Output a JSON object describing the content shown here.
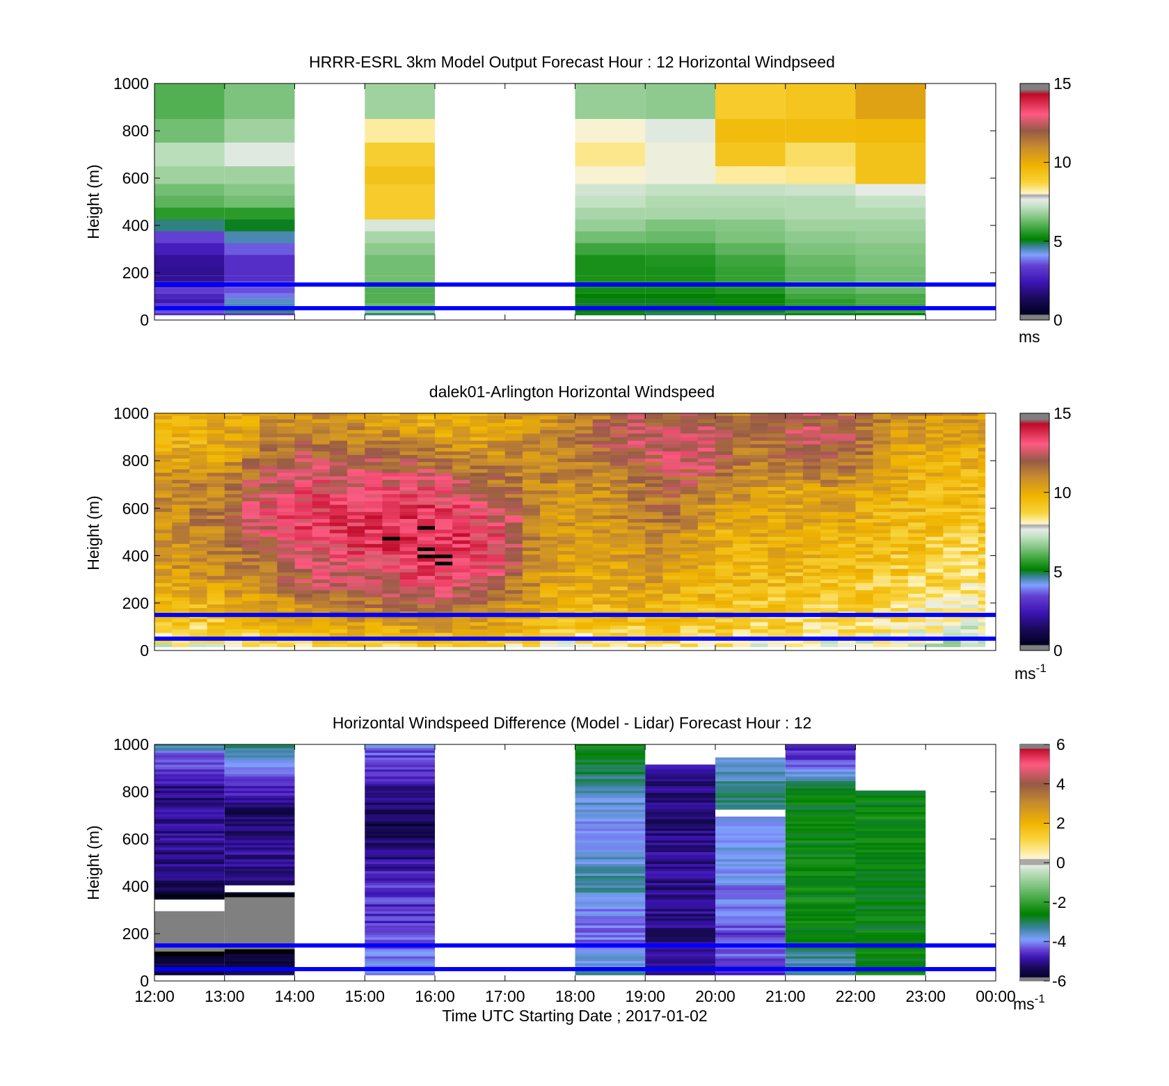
{
  "chart_data": [
    {
      "type": "heatmap",
      "title": "HRRR-ESRL 3km Model Output   Forecast Hour : 12 Horizontal Windpseed",
      "ylabel": "Height (m)",
      "xlabel": "",
      "yticks": [
        "0",
        "200",
        "400",
        "600",
        "800",
        "1000"
      ],
      "ylim": [
        0,
        1000
      ],
      "xlim_hours": [
        12,
        24
      ],
      "colorbar": {
        "ticks": [
          "0",
          "5",
          "10",
          "15"
        ],
        "min": 0,
        "max": 15,
        "unit": "ms",
        "unit_sup": ""
      },
      "reference_lines_m": [
        50,
        150
      ],
      "reference_line_color": "#0000ff",
      "heights_m": [
        20,
        40,
        60,
        80,
        100,
        125,
        150,
        175,
        200,
        250,
        300,
        350,
        400,
        450,
        500,
        550,
        600,
        700,
        800,
        900,
        1000
      ],
      "columns": [
        {
          "start": 12,
          "end": 13,
          "values": [
            3.0,
            3.5,
            3.2,
            2.5,
            2.8,
            3.3,
            2.3,
            2.0,
            2.0,
            2.1,
            2.6,
            3.4,
            4.7,
            5.6,
            6.1,
            6.3,
            6.8,
            7.1,
            6.3,
            6.0,
            6.0
          ]
        },
        {
          "start": 13,
          "end": 14,
          "values": [
            3.2,
            4.7,
            4.5,
            4.4,
            3.8,
            3.5,
            3.5,
            3.0,
            3.0,
            3.0,
            3.6,
            4.5,
            5.0,
            5.6,
            6.3,
            6.5,
            6.8,
            7.6,
            6.8,
            6.4,
            6.4
          ]
        },
        {
          "start": 15,
          "end": 16,
          "values": [
            4.7,
            6.5,
            6.2,
            6.0,
            6.0,
            6.0,
            6.0,
            6.3,
            6.3,
            6.3,
            6.6,
            6.9,
            7.5,
            9.0,
            9.0,
            9.0,
            9.3,
            8.9,
            8.2,
            6.8,
            6.8
          ]
        },
        {
          "start": 18,
          "end": 19,
          "values": [
            5.0,
            5.1,
            5.0,
            5.0,
            5.1,
            5.3,
            5.3,
            5.4,
            5.4,
            5.4,
            5.8,
            6.3,
            6.7,
            6.9,
            7.2,
            7.4,
            7.9,
            8.3,
            7.9,
            6.7,
            6.7
          ]
        },
        {
          "start": 19,
          "end": 20,
          "values": [
            4.8,
            5.0,
            5.0,
            5.0,
            5.1,
            5.3,
            5.3,
            5.4,
            5.4,
            5.5,
            5.8,
            6.2,
            6.4,
            6.9,
            7.0,
            7.2,
            7.8,
            7.8,
            7.6,
            6.6,
            6.6
          ]
        },
        {
          "start": 20,
          "end": 21,
          "values": [
            4.8,
            5.2,
            5.2,
            5.2,
            5.2,
            5.5,
            5.5,
            5.7,
            5.7,
            5.8,
            6.1,
            6.4,
            6.5,
            6.9,
            7.0,
            7.2,
            8.2,
            9.2,
            9.5,
            9.0,
            9.0
          ]
        },
        {
          "start": 21,
          "end": 22,
          "values": [
            5.0,
            5.6,
            5.6,
            5.6,
            5.8,
            6.0,
            6.1,
            6.1,
            6.1,
            6.2,
            6.4,
            6.6,
            6.8,
            7.0,
            7.0,
            7.3,
            8.3,
            8.5,
            9.5,
            9.2,
            9.2
          ]
        },
        {
          "start": 22,
          "end": 23,
          "values": [
            5.1,
            5.8,
            5.8,
            5.9,
            5.9,
            6.2,
            6.3,
            6.3,
            6.3,
            6.4,
            6.5,
            6.7,
            6.8,
            7.0,
            7.2,
            7.7,
            9.3,
            9.3,
            9.6,
            10.3,
            10.3
          ]
        }
      ]
    },
    {
      "type": "heatmap",
      "title": "dalek01-Arlington  Horizontal Windspeed",
      "ylabel": "Height (m)",
      "xlabel": "",
      "yticks": [
        "0",
        "200",
        "400",
        "600",
        "800",
        "1000"
      ],
      "ylim": [
        0,
        1000
      ],
      "xlim_hours": [
        12,
        24
      ],
      "colorbar": {
        "ticks": [
          "0",
          "5",
          "10",
          "15"
        ],
        "min": 0,
        "max": 15,
        "unit": "ms",
        "unit_sup": "-1"
      },
      "reference_lines_m": [
        50,
        150
      ],
      "reference_line_color": "#0000ff",
      "profiles": {
        "count": 48,
        "start_hour": 12.0,
        "step_hours": 0.25,
        "end_hour": 23.85,
        "key_hours": [
          12.0,
          13.0,
          13.5,
          14.0,
          14.5,
          15.0,
          15.5,
          16.0,
          16.5,
          17.0,
          17.5,
          18.0,
          18.5,
          19.0,
          19.5,
          20.0,
          20.5,
          21.0,
          21.5,
          22.0,
          22.5,
          23.0,
          23.5,
          23.9
        ],
        "key_heights_m": [
          0,
          100,
          200,
          300,
          400,
          500,
          600,
          700,
          800,
          900,
          1000
        ],
        "grid": [
          [
            7.5,
            8.8,
            9.5,
            10.2,
            10.5,
            10.5,
            10.8,
            11.0,
            10.3,
            9.5,
            9.8
          ],
          [
            7.8,
            9.0,
            9.8,
            10.8,
            11.0,
            11.2,
            11.5,
            11.0,
            10.5,
            10.0,
            10.0
          ],
          [
            8.0,
            9.5,
            10.5,
            11.0,
            11.8,
            12.5,
            12.8,
            12.3,
            11.5,
            10.8,
            10.3
          ],
          [
            8.3,
            9.8,
            11.0,
            12.0,
            12.5,
            13.2,
            13.3,
            12.8,
            12.3,
            11.5,
            10.8
          ],
          [
            8.3,
            10.0,
            11.3,
            12.5,
            13.0,
            13.5,
            13.4,
            13.0,
            12.3,
            11.0,
            10.5
          ],
          [
            8.3,
            10.2,
            11.5,
            12.5,
            13.3,
            13.5,
            13.5,
            13.0,
            12.0,
            11.0,
            10.5
          ],
          [
            8.5,
            10.3,
            11.8,
            13.0,
            13.5,
            13.7,
            13.5,
            13.0,
            12.0,
            11.0,
            10.0
          ],
          [
            8.5,
            10.5,
            12.0,
            13.2,
            14.2,
            13.8,
            13.5,
            12.8,
            11.5,
            10.5,
            9.8
          ],
          [
            8.5,
            10.3,
            11.5,
            12.8,
            13.5,
            13.5,
            13.2,
            12.0,
            11.0,
            10.0,
            10.0
          ],
          [
            8.3,
            10.0,
            11.0,
            12.0,
            12.8,
            13.0,
            12.5,
            11.5,
            11.0,
            10.5,
            10.3
          ],
          [
            8.0,
            9.5,
            10.3,
            10.5,
            10.5,
            10.8,
            11.0,
            11.0,
            11.0,
            11.0,
            10.5
          ],
          [
            7.5,
            9.0,
            9.5,
            10.0,
            10.0,
            10.5,
            10.5,
            10.8,
            11.2,
            11.5,
            11.0
          ],
          [
            8.0,
            9.0,
            9.8,
            10.0,
            10.3,
            10.5,
            10.8,
            11.0,
            11.5,
            12.0,
            11.5
          ],
          [
            8.2,
            9.2,
            10.0,
            10.5,
            11.0,
            11.0,
            11.5,
            11.5,
            12.0,
            12.5,
            12.0
          ],
          [
            8.5,
            9.0,
            9.8,
            10.0,
            10.5,
            10.8,
            11.5,
            12.0,
            12.8,
            13.0,
            12.0
          ],
          [
            8.0,
            9.0,
            9.5,
            9.8,
            10.0,
            10.0,
            10.5,
            11.0,
            12.5,
            13.0,
            11.5
          ],
          [
            7.8,
            8.8,
            9.2,
            9.5,
            9.8,
            10.0,
            10.2,
            10.8,
            11.0,
            11.5,
            11.0
          ],
          [
            7.5,
            8.8,
            9.0,
            9.5,
            9.8,
            10.0,
            10.0,
            10.2,
            11.5,
            12.0,
            12.5
          ],
          [
            7.5,
            8.5,
            9.0,
            9.3,
            9.8,
            10.0,
            10.5,
            10.8,
            12.0,
            12.5,
            12.0
          ],
          [
            7.5,
            8.5,
            9.0,
            9.3,
            9.5,
            9.8,
            10.2,
            10.5,
            11.5,
            12.0,
            11.5
          ],
          [
            7.2,
            8.5,
            8.8,
            9.0,
            9.3,
            9.5,
            9.8,
            10.0,
            10.2,
            10.5,
            11.0
          ],
          [
            7.0,
            8.0,
            8.3,
            8.8,
            9.0,
            9.3,
            9.5,
            9.8,
            10.0,
            10.5,
            10.8
          ],
          [
            6.5,
            7.5,
            8.0,
            8.5,
            8.8,
            9.0,
            9.3,
            9.5,
            9.8,
            10.2,
            10.5
          ],
          [
            6.8,
            7.8,
            8.3,
            8.8,
            9.0,
            9.3,
            9.5,
            9.8,
            10.0,
            10.5,
            10.5
          ]
        ]
      }
    },
    {
      "type": "heatmap",
      "title": "Horizontal Windspeed Difference (Model - Lidar) Forecast Hour : 12",
      "ylabel": "Height (m)",
      "xlabel": "Time UTC  Starting Date ; 2017-01-02",
      "xticks": [
        "12:00",
        "13:00",
        "14:00",
        "15:00",
        "16:00",
        "17:00",
        "18:00",
        "19:00",
        "20:00",
        "21:00",
        "22:00",
        "23:00",
        "00:00"
      ],
      "yticks": [
        "0",
        "200",
        "400",
        "600",
        "800",
        "1000"
      ],
      "ylim": [
        0,
        1000
      ],
      "xlim_hours": [
        12,
        24
      ],
      "colorbar": {
        "ticks": [
          "-6",
          "-4",
          "-2",
          "0",
          "2",
          "4",
          "6"
        ],
        "min": -6,
        "max": 6,
        "unit": "ms",
        "unit_sup": "-1"
      },
      "reference_lines_m": [
        50,
        150
      ],
      "reference_line_color": "#0000ff",
      "columns": [
        {
          "start": 12,
          "end": 13,
          "top_m": 1000,
          "gaps_m": [
            [
              300,
              345
            ]
          ],
          "key_heights_m": [
            0,
            100,
            160,
            300,
            360,
            450,
            600,
            800,
            950,
            1000
          ],
          "key_values": [
            -5.2,
            -5.7,
            -7.0,
            -7.0,
            -5.7,
            -5.0,
            -5.0,
            -5.1,
            -4.3,
            -3.0
          ]
        },
        {
          "start": 13,
          "end": 14,
          "top_m": 1000,
          "gaps_m": [
            [
              380,
              400
            ]
          ],
          "key_heights_m": [
            0,
            100,
            160,
            330,
            380,
            420,
            550,
            700,
            800,
            900,
            960,
            1000
          ],
          "key_values": [
            -5.2,
            -5.6,
            -7.0,
            -7.0,
            -5.8,
            -5.2,
            -5.0,
            -5.3,
            -4.8,
            -4.0,
            -3.5,
            -3.0
          ]
        },
        {
          "start": 15,
          "end": 16,
          "top_m": 1000,
          "gaps_m": [],
          "key_heights_m": [
            0,
            80,
            200,
            400,
            550,
            650,
            800,
            950,
            1000
          ],
          "key_values": [
            -3.8,
            -4.0,
            -4.4,
            -4.6,
            -5.1,
            -5.5,
            -5.0,
            -4.4,
            -4.0
          ]
        },
        {
          "start": 18,
          "end": 19,
          "top_m": 1000,
          "gaps_m": [],
          "key_heights_m": [
            0,
            100,
            200,
            300,
            400,
            500,
            600,
            700,
            800,
            900,
            1000
          ],
          "key_values": [
            -3.4,
            -3.6,
            -4.3,
            -4.0,
            -3.2,
            -3.6,
            -4.1,
            -3.8,
            -3.5,
            -2.8,
            -2.5
          ]
        },
        {
          "start": 19,
          "end": 20,
          "top_m": 915,
          "gaps_m": [],
          "key_heights_m": [
            0,
            100,
            300,
            500,
            700,
            915
          ],
          "key_values": [
            -4.8,
            -5.0,
            -5.1,
            -5.0,
            -5.2,
            -5.0
          ]
        },
        {
          "start": 20,
          "end": 21,
          "top_m": 1000,
          "gaps_m": [
            [
              695,
              725
            ],
            [
              950,
              1000
            ]
          ],
          "key_heights_m": [
            0,
            100,
            200,
            300,
            400,
            500,
            600,
            690,
            730,
            800,
            900,
            945
          ],
          "key_values": [
            -4.5,
            -4.3,
            -4.4,
            -4.2,
            -4.0,
            -3.8,
            -3.9,
            -3.8,
            -3.2,
            -3.0,
            -3.7,
            -3.8
          ]
        },
        {
          "start": 21,
          "end": 22,
          "top_m": 1000,
          "gaps_m": [],
          "key_heights_m": [
            0,
            60,
            150,
            200,
            400,
            600,
            800,
            850,
            900,
            1000
          ],
          "key_values": [
            -3.6,
            -3.5,
            -3.0,
            -2.5,
            -2.5,
            -2.5,
            -2.7,
            -3.2,
            -4.3,
            -4.7
          ]
        },
        {
          "start": 22,
          "end": 23,
          "top_m": 805,
          "gaps_m": [],
          "key_heights_m": [
            0,
            200,
            400,
            600,
            805
          ],
          "key_values": [
            -2.5,
            -2.6,
            -2.6,
            -2.5,
            -2.5
          ]
        }
      ]
    }
  ]
}
